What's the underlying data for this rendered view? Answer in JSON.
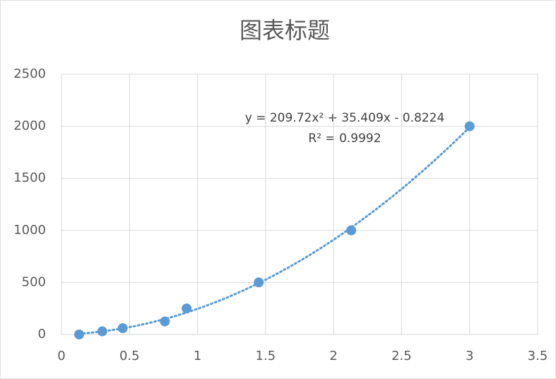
{
  "chart_data": {
    "type": "scatter",
    "title": "图表标题",
    "series": [
      {
        "color": "#5b9bd5",
        "x": [
          0.13,
          0.3,
          0.45,
          0.76,
          0.92,
          1.45,
          2.13,
          3
        ],
        "values": [
          0,
          30,
          60,
          125,
          250,
          500,
          1000,
          2000
        ]
      }
    ],
    "trendline": {
      "type": "polynomial",
      "equation": "y = 209.72x² + 35.409x - 0.8224",
      "r_squared": "R² = 0.9992"
    },
    "xlim": [
      0,
      3.5
    ],
    "xticks": [
      0,
      0.5,
      1,
      1.5,
      2,
      2.5,
      3,
      3.5
    ],
    "ylim": [
      0,
      2500
    ],
    "yticks": [
      0,
      500,
      1000,
      1500,
      2000,
      2500
    ],
    "grid": true
  }
}
